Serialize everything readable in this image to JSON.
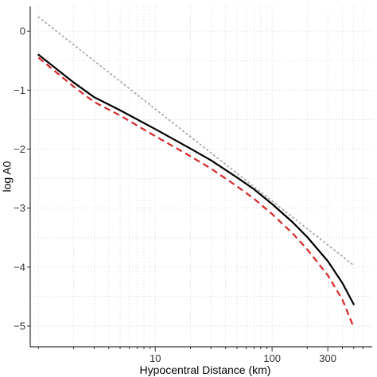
{
  "chart_data": {
    "type": "line",
    "title": "",
    "xlabel": "Hypocentral Distance (km)",
    "ylabel": "log A0",
    "x_scale": "log",
    "xlim": [
      0.85,
      720
    ],
    "ylim": [
      -5.35,
      0.42
    ],
    "x_ticks": [
      10,
      100,
      300
    ],
    "x_tick_labels": [
      "10",
      "100",
      "300"
    ],
    "x_minor_ticks": [
      1,
      2,
      3,
      4,
      5,
      6,
      7,
      8,
      9,
      20,
      30,
      40,
      50,
      60,
      70,
      80,
      90,
      200,
      400,
      500,
      600
    ],
    "y_ticks": [
      0,
      -1,
      -2,
      -3,
      -4,
      -5
    ],
    "y_tick_labels": [
      "0",
      "−1",
      "−2",
      "−3",
      "−4",
      "−5"
    ],
    "grid": true,
    "legend": "none",
    "series": [
      {
        "style": "solid",
        "color": "#000000",
        "x": [
          1,
          2,
          3,
          5,
          10,
          20,
          30,
          50,
          70,
          100,
          150,
          200,
          300,
          400,
          500
        ],
        "y": [
          -0.4,
          -0.87,
          -1.12,
          -1.34,
          -1.66,
          -1.99,
          -2.19,
          -2.48,
          -2.68,
          -2.93,
          -3.24,
          -3.49,
          -3.9,
          -4.27,
          -4.63
        ]
      },
      {
        "style": "dashed",
        "color": "#d62728",
        "x": [
          1,
          2,
          3,
          5,
          10,
          20,
          30,
          50,
          70,
          100,
          150,
          200,
          300,
          400,
          500
        ],
        "y": [
          -0.45,
          -0.94,
          -1.2,
          -1.43,
          -1.78,
          -2.12,
          -2.33,
          -2.63,
          -2.84,
          -3.1,
          -3.43,
          -3.7,
          -4.14,
          -4.55,
          -5.02
        ]
      },
      {
        "style": "dotted",
        "color": "#aaaaaa",
        "x": [
          1,
          500
        ],
        "y": [
          0.24,
          -3.97
        ]
      }
    ]
  }
}
